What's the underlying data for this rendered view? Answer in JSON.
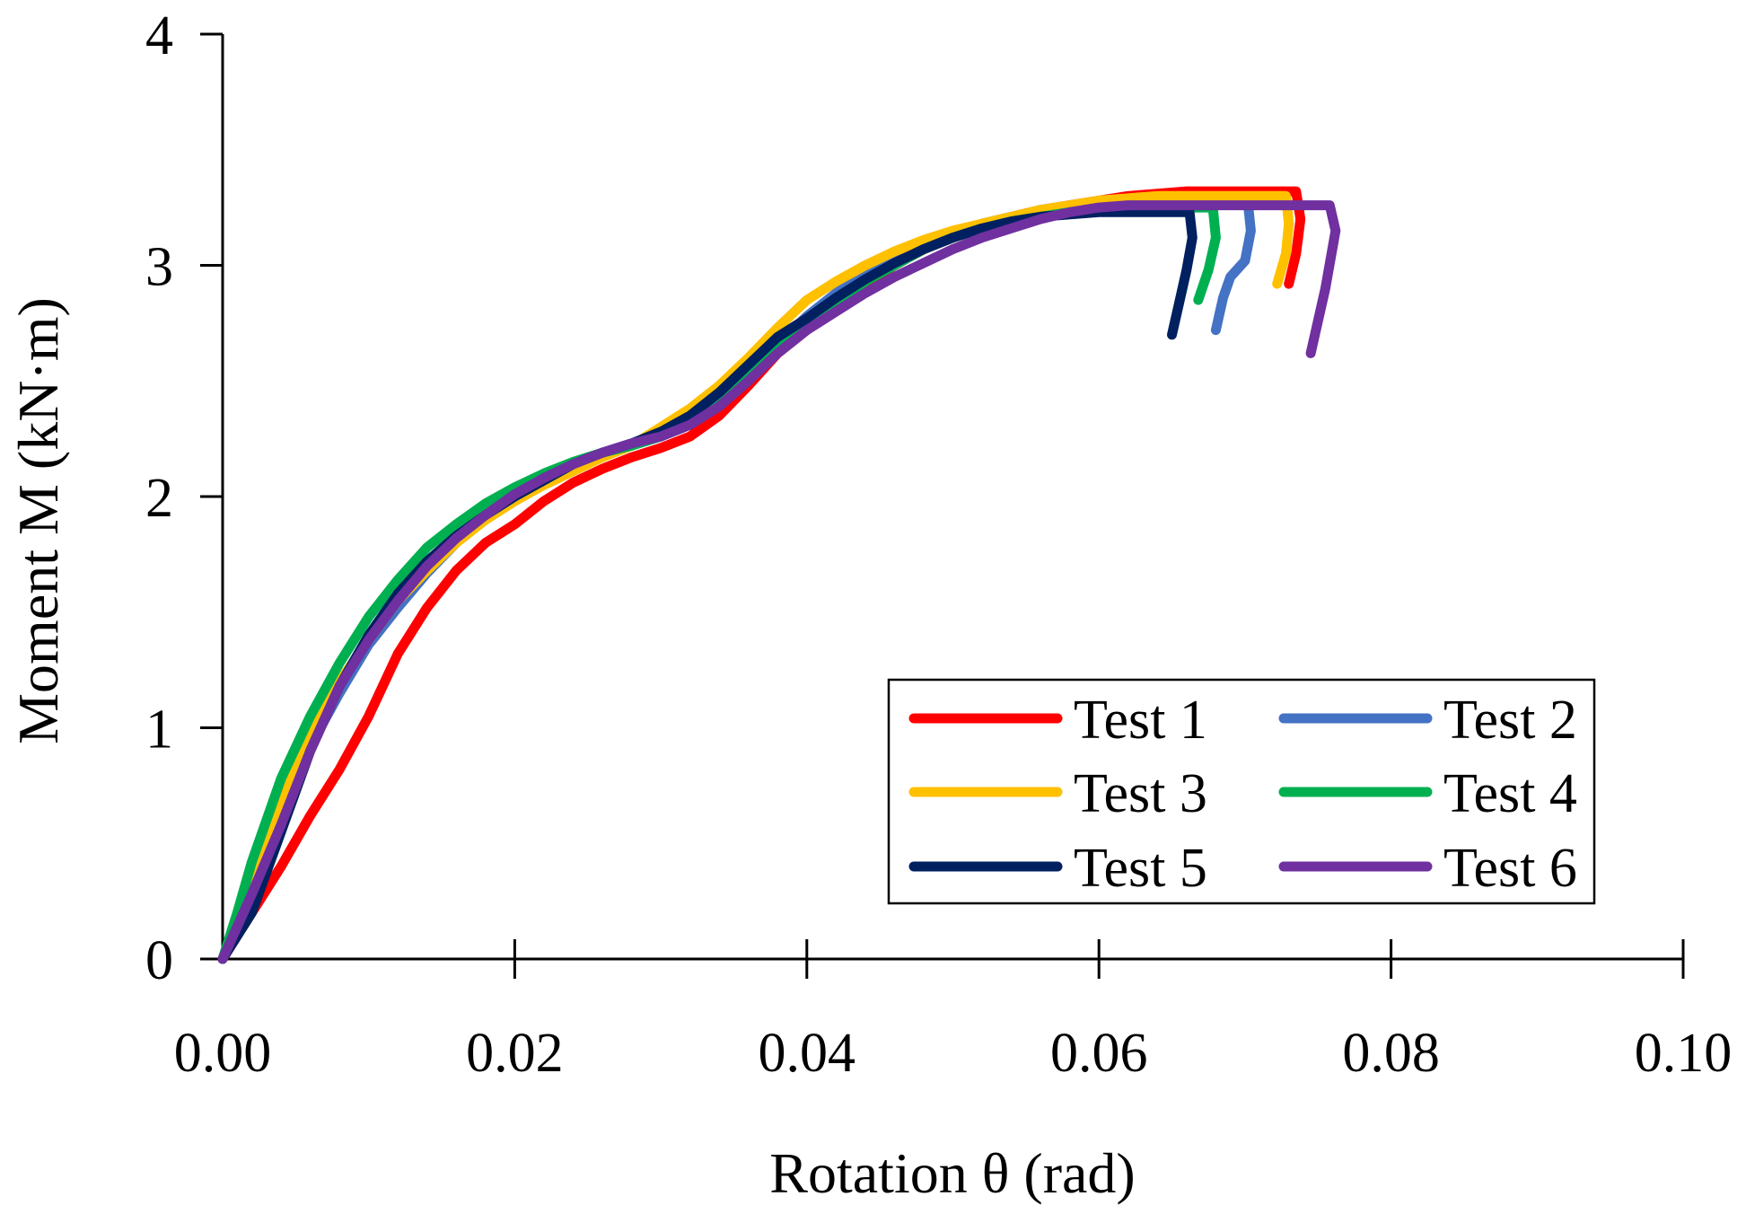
{
  "chart_data": {
    "type": "line",
    "title": "",
    "xlabel": "Rotation θ (rad)",
    "ylabel": "Moment M (kN·m)",
    "xlim": [
      0,
      0.1
    ],
    "ylim": [
      0,
      4
    ],
    "xticks": [
      "0.00",
      "0.02",
      "0.04",
      "0.06",
      "0.08",
      "0.10"
    ],
    "yticks": [
      "0",
      "1",
      "2",
      "3",
      "4"
    ],
    "xtick_values": [
      0,
      0.02,
      0.04,
      0.06,
      0.08,
      0.1
    ],
    "ytick_values": [
      0,
      1,
      2,
      3,
      4
    ],
    "grid": false,
    "legend_position": "bottom-right",
    "series": [
      {
        "name": "Test 1",
        "color": "#FF0000",
        "x": [
          0,
          0.002,
          0.004,
          0.006,
          0.008,
          0.01,
          0.012,
          0.014,
          0.016,
          0.018,
          0.02,
          0.022,
          0.024,
          0.026,
          0.028,
          0.03,
          0.032,
          0.034,
          0.036,
          0.038,
          0.04,
          0.042,
          0.044,
          0.046,
          0.048,
          0.05,
          0.052,
          0.054,
          0.056,
          0.058,
          0.06,
          0.062,
          0.064,
          0.066,
          0.068,
          0.07,
          0.072,
          0.0735,
          0.0738,
          0.0735,
          0.073
        ],
        "y": [
          0,
          0.2,
          0.4,
          0.62,
          0.82,
          1.05,
          1.32,
          1.52,
          1.68,
          1.8,
          1.88,
          1.98,
          2.06,
          2.12,
          2.17,
          2.21,
          2.26,
          2.35,
          2.48,
          2.62,
          2.72,
          2.82,
          2.92,
          3.0,
          3.07,
          3.12,
          3.16,
          3.2,
          3.23,
          3.26,
          3.28,
          3.3,
          3.31,
          3.32,
          3.32,
          3.32,
          3.32,
          3.32,
          3.2,
          3.05,
          2.92
        ]
      },
      {
        "name": "Test 2",
        "color": "#4472C4",
        "x": [
          0,
          0.002,
          0.004,
          0.006,
          0.008,
          0.01,
          0.012,
          0.014,
          0.016,
          0.018,
          0.02,
          0.022,
          0.024,
          0.026,
          0.028,
          0.03,
          0.032,
          0.034,
          0.036,
          0.038,
          0.04,
          0.042,
          0.044,
          0.046,
          0.048,
          0.05,
          0.052,
          0.054,
          0.056,
          0.058,
          0.06,
          0.062,
          0.064,
          0.066,
          0.068,
          0.0702,
          0.0704,
          0.07,
          0.069,
          0.0685,
          0.068
        ],
        "y": [
          0,
          0.32,
          0.65,
          0.92,
          1.15,
          1.36,
          1.52,
          1.67,
          1.8,
          1.92,
          2.0,
          2.07,
          2.13,
          2.18,
          2.22,
          2.27,
          2.33,
          2.42,
          2.54,
          2.66,
          2.78,
          2.88,
          2.96,
          3.03,
          3.09,
          3.14,
          3.18,
          3.21,
          3.24,
          3.26,
          3.27,
          3.27,
          3.27,
          3.27,
          3.27,
          3.27,
          3.15,
          3.02,
          2.95,
          2.86,
          2.72
        ]
      },
      {
        "name": "Test 3",
        "color": "#FFC000",
        "x": [
          0,
          0.002,
          0.004,
          0.006,
          0.008,
          0.01,
          0.012,
          0.014,
          0.016,
          0.018,
          0.02,
          0.022,
          0.024,
          0.026,
          0.028,
          0.03,
          0.032,
          0.034,
          0.036,
          0.038,
          0.04,
          0.042,
          0.044,
          0.046,
          0.048,
          0.05,
          0.052,
          0.054,
          0.056,
          0.058,
          0.06,
          0.062,
          0.064,
          0.066,
          0.068,
          0.07,
          0.0728,
          0.073,
          0.0728,
          0.0722
        ],
        "y": [
          0,
          0.33,
          0.68,
          0.98,
          1.2,
          1.38,
          1.55,
          1.68,
          1.8,
          1.9,
          1.98,
          2.05,
          2.11,
          2.17,
          2.22,
          2.3,
          2.38,
          2.48,
          2.6,
          2.73,
          2.85,
          2.93,
          3.0,
          3.06,
          3.11,
          3.15,
          3.18,
          3.21,
          3.24,
          3.26,
          3.28,
          3.29,
          3.3,
          3.3,
          3.3,
          3.3,
          3.3,
          3.18,
          3.05,
          2.92
        ]
      },
      {
        "name": "Test 4",
        "color": "#00B050",
        "x": [
          0,
          0.001,
          0.002,
          0.004,
          0.006,
          0.008,
          0.01,
          0.012,
          0.014,
          0.016,
          0.018,
          0.02,
          0.022,
          0.024,
          0.026,
          0.028,
          0.03,
          0.032,
          0.034,
          0.036,
          0.038,
          0.04,
          0.042,
          0.044,
          0.046,
          0.048,
          0.05,
          0.052,
          0.054,
          0.056,
          0.058,
          0.06,
          0.062,
          0.064,
          0.066,
          0.0678,
          0.068,
          0.0675,
          0.0668
        ],
        "y": [
          0,
          0.2,
          0.42,
          0.78,
          1.05,
          1.28,
          1.48,
          1.64,
          1.78,
          1.88,
          1.97,
          2.04,
          2.1,
          2.15,
          2.19,
          2.22,
          2.26,
          2.32,
          2.4,
          2.52,
          2.64,
          2.74,
          2.84,
          2.93,
          3.0,
          3.07,
          3.12,
          3.16,
          3.19,
          3.21,
          3.23,
          3.24,
          3.25,
          3.25,
          3.25,
          3.25,
          3.12,
          2.98,
          2.85
        ]
      },
      {
        "name": "Test 5",
        "color": "#002060",
        "x": [
          0,
          0.002,
          0.004,
          0.006,
          0.008,
          0.01,
          0.012,
          0.014,
          0.016,
          0.018,
          0.02,
          0.022,
          0.024,
          0.026,
          0.028,
          0.03,
          0.032,
          0.034,
          0.036,
          0.038,
          0.04,
          0.042,
          0.044,
          0.046,
          0.048,
          0.05,
          0.052,
          0.054,
          0.056,
          0.058,
          0.06,
          0.062,
          0.064,
          0.0662,
          0.0664,
          0.066,
          0.0655,
          0.065
        ],
        "y": [
          0,
          0.2,
          0.55,
          0.9,
          1.18,
          1.4,
          1.58,
          1.72,
          1.83,
          1.92,
          2.0,
          2.07,
          2.14,
          2.19,
          2.23,
          2.28,
          2.35,
          2.45,
          2.57,
          2.69,
          2.77,
          2.86,
          2.94,
          3.01,
          3.07,
          3.12,
          3.16,
          3.19,
          3.21,
          3.22,
          3.23,
          3.23,
          3.23,
          3.23,
          3.12,
          2.98,
          2.84,
          2.7
        ]
      },
      {
        "name": "Test 6",
        "color": "#7030A0",
        "x": [
          0,
          0.002,
          0.004,
          0.006,
          0.008,
          0.01,
          0.012,
          0.014,
          0.016,
          0.018,
          0.02,
          0.022,
          0.024,
          0.026,
          0.028,
          0.03,
          0.032,
          0.034,
          0.036,
          0.038,
          0.04,
          0.042,
          0.044,
          0.046,
          0.048,
          0.05,
          0.052,
          0.054,
          0.056,
          0.058,
          0.06,
          0.062,
          0.064,
          0.066,
          0.068,
          0.07,
          0.072,
          0.074,
          0.0758,
          0.0762,
          0.0755,
          0.0745
        ],
        "y": [
          0,
          0.28,
          0.58,
          0.9,
          1.18,
          1.38,
          1.55,
          1.7,
          1.82,
          1.92,
          2.01,
          2.08,
          2.14,
          2.19,
          2.23,
          2.26,
          2.31,
          2.39,
          2.5,
          2.62,
          2.72,
          2.8,
          2.88,
          2.95,
          3.01,
          3.07,
          3.12,
          3.16,
          3.2,
          3.23,
          3.25,
          3.26,
          3.26,
          3.26,
          3.26,
          3.26,
          3.26,
          3.26,
          3.26,
          3.15,
          2.9,
          2.62
        ]
      }
    ]
  }
}
